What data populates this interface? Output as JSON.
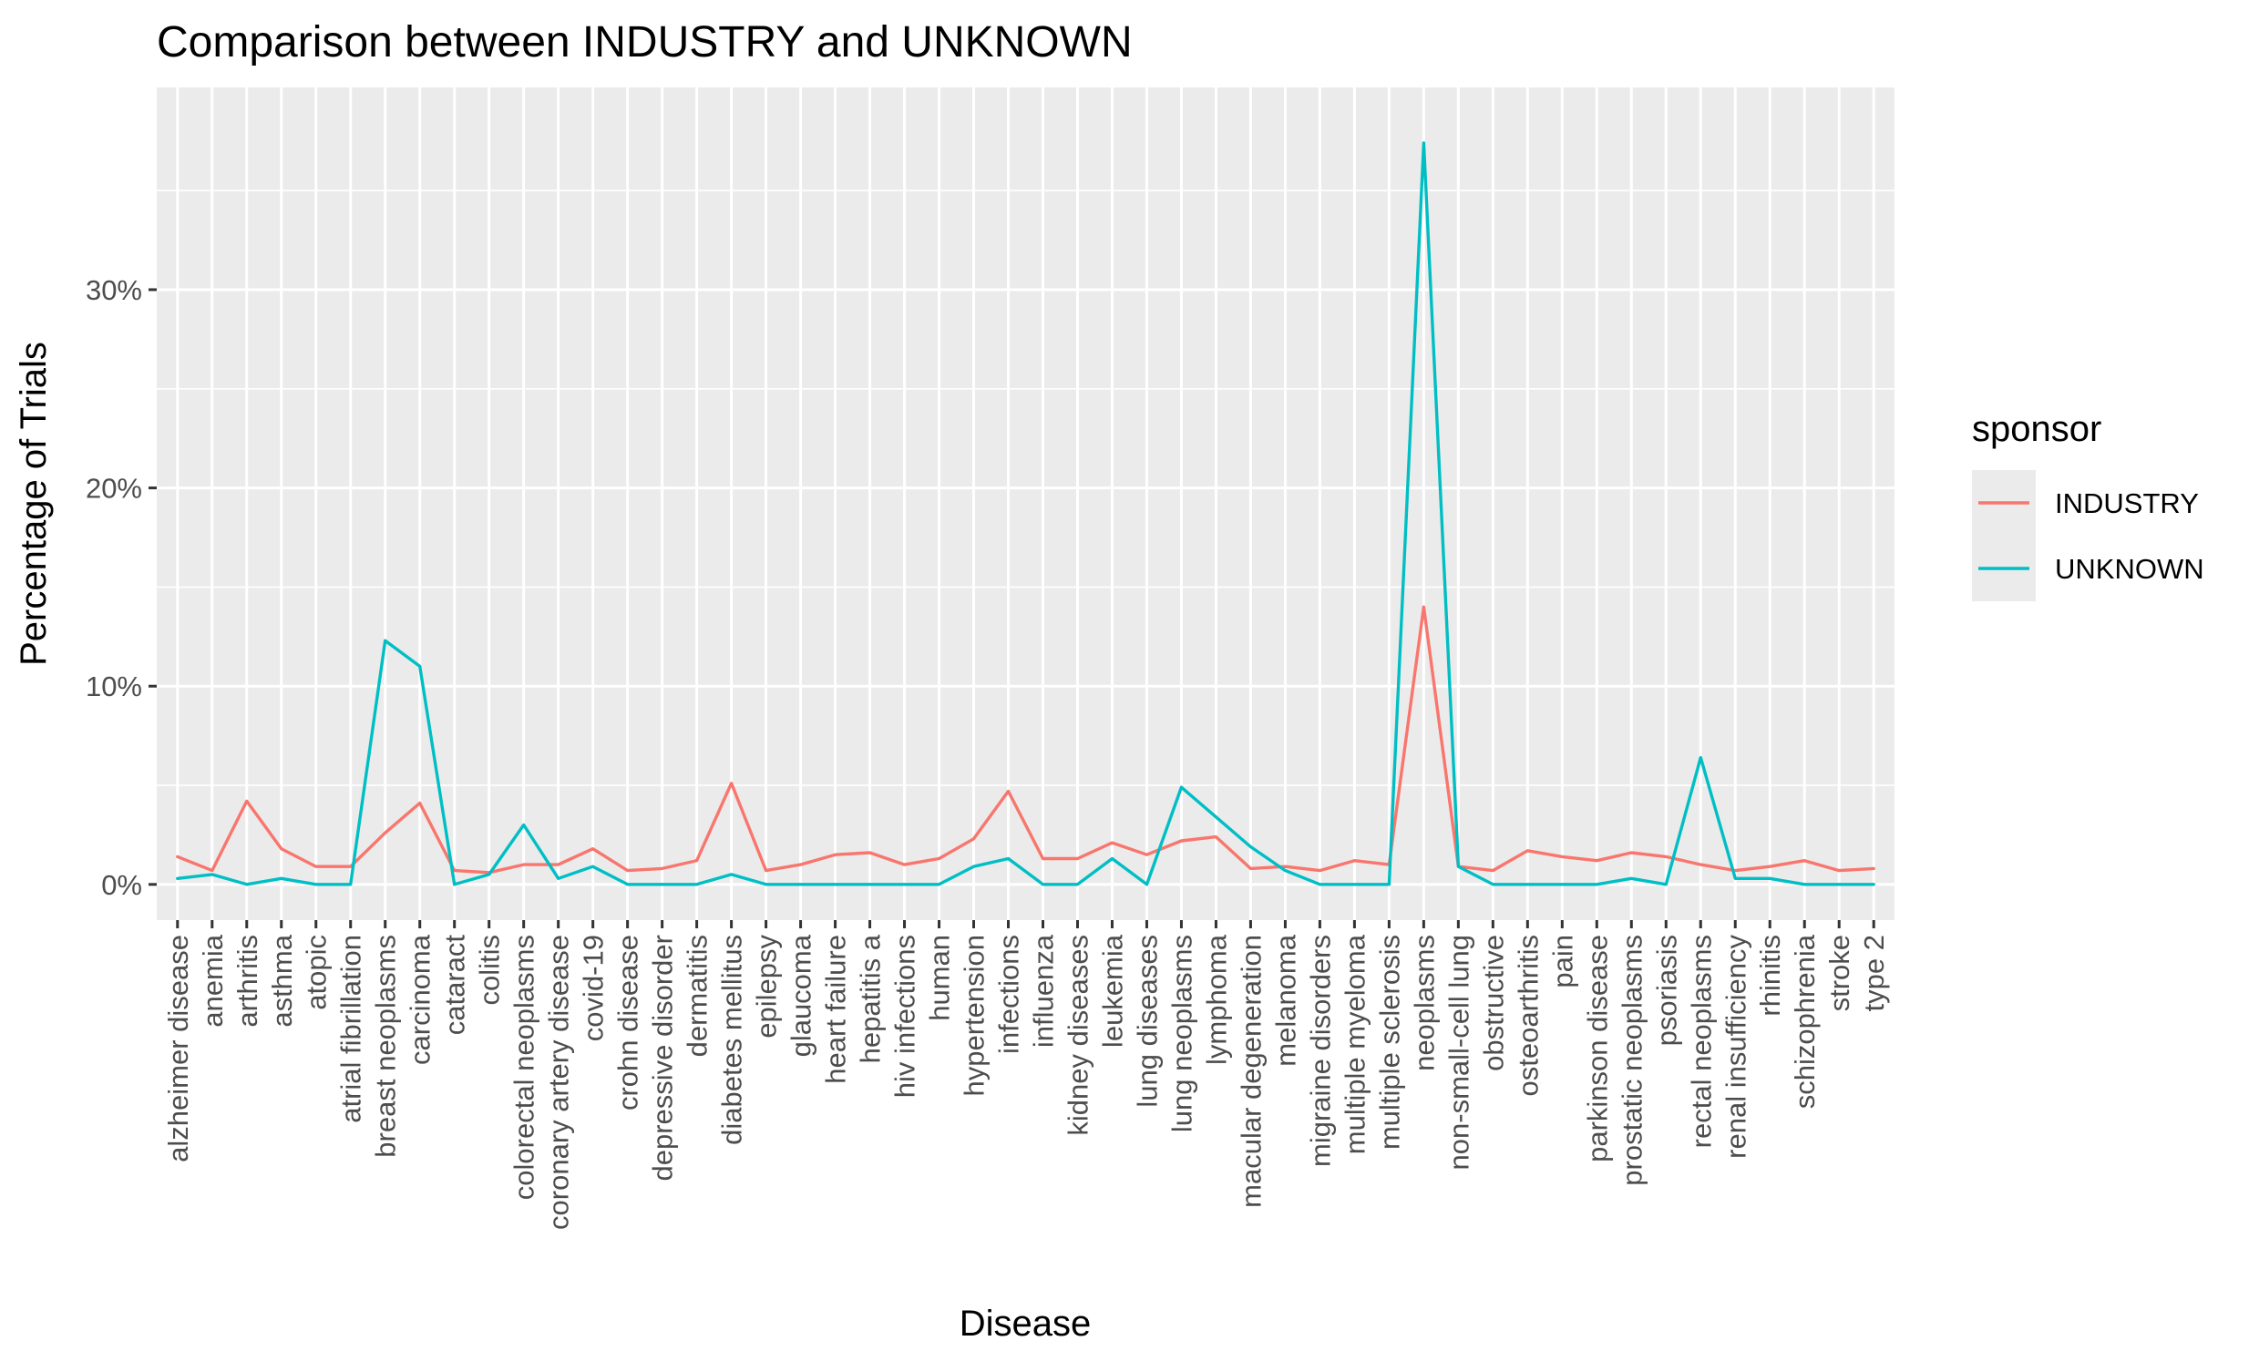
{
  "chart_data": {
    "type": "line",
    "title": "Comparison between INDUSTRY and UNKNOWN",
    "xlabel": "Disease",
    "ylabel": "Percentage of Trials",
    "ylim": [
      -1.8,
      40.2
    ],
    "yticks": [
      0,
      10,
      20,
      30
    ],
    "ytick_labels": [
      "0%",
      "10%",
      "20%",
      "30%"
    ],
    "grid": true,
    "legend_title": "sponsor",
    "legend_position": "right",
    "categories": [
      "alzheimer disease",
      "anemia",
      "arthritis",
      "asthma",
      "atopic",
      "atrial fibrillation",
      "breast neoplasms",
      "carcinoma",
      "cataract",
      "colitis",
      "colorectal neoplasms",
      "coronary artery disease",
      "covid-19",
      "crohn disease",
      "depressive disorder",
      "dermatitis",
      "diabetes mellitus",
      "epilepsy",
      "glaucoma",
      "heart failure",
      "hepatitis a",
      "hiv infections",
      "human",
      "hypertension",
      "infections",
      "influenza",
      "kidney diseases",
      "leukemia",
      "lung diseases",
      "lung neoplasms",
      "lymphoma",
      "macular degeneration",
      "melanoma",
      "migraine disorders",
      "multiple myeloma",
      "multiple sclerosis",
      "neoplasms",
      "non-small-cell lung",
      "obstructive",
      "osteoarthritis",
      "pain",
      "parkinson disease",
      "prostatic neoplasms",
      "psoriasis",
      "rectal neoplasms",
      "renal insufficiency",
      "rhinitis",
      "schizophrenia",
      "stroke",
      "type 2"
    ],
    "series": [
      {
        "name": "INDUSTRY",
        "color": "#F8766D",
        "values": [
          1.4,
          0.7,
          4.2,
          1.8,
          0.9,
          0.9,
          2.6,
          4.1,
          0.7,
          0.6,
          1.0,
          1.0,
          1.8,
          0.7,
          0.8,
          1.2,
          5.1,
          0.7,
          1.0,
          1.5,
          1.6,
          1.0,
          1.3,
          2.3,
          4.7,
          1.3,
          1.3,
          2.1,
          1.5,
          2.2,
          2.4,
          0.8,
          0.9,
          0.7,
          1.2,
          1.0,
          14.0,
          0.9,
          0.7,
          1.7,
          1.4,
          1.2,
          1.6,
          1.4,
          1.0,
          0.7,
          0.9,
          1.2,
          0.7,
          0.8
        ]
      },
      {
        "name": "UNKNOWN",
        "color": "#00BFC4",
        "values": [
          0.3,
          0.5,
          0.0,
          0.3,
          0.0,
          0.0,
          12.3,
          11.0,
          0.0,
          0.5,
          3.0,
          0.3,
          0.9,
          0.0,
          0.0,
          0.0,
          0.5,
          0.0,
          0.0,
          0.0,
          0.0,
          0.0,
          0.0,
          0.9,
          1.3,
          0.0,
          0.0,
          1.3,
          0.0,
          4.9,
          3.4,
          1.9,
          0.7,
          0.0,
          0.0,
          0.0,
          37.4,
          0.9,
          0.0,
          0.0,
          0.0,
          0.0,
          0.3,
          0.0,
          6.4,
          0.3,
          0.3,
          0.0,
          0.0,
          0.0
        ]
      }
    ]
  }
}
